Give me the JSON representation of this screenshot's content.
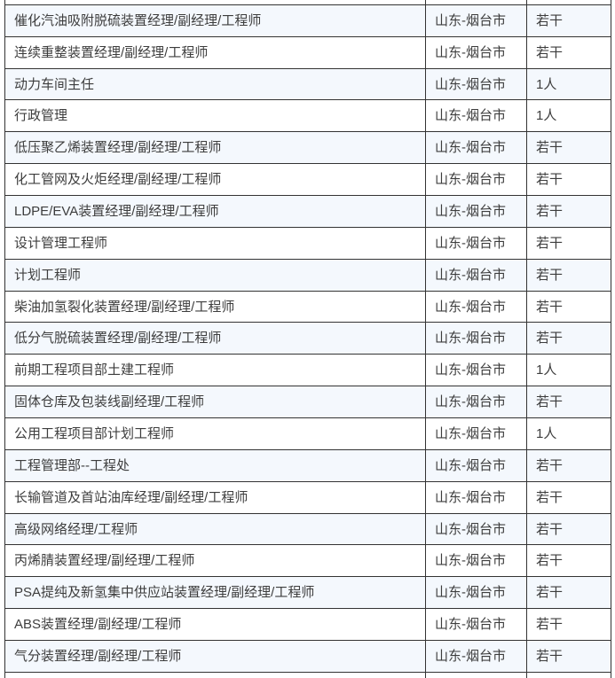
{
  "table": {
    "location_column_value": "山东-烟台市",
    "rows": [
      {
        "position": "催化汽油吸附脱硫装置经理/副经理/工程师",
        "location": "山东-烟台市",
        "headcount": "若干"
      },
      {
        "position": "连续重整装置经理/副经理/工程师",
        "location": "山东-烟台市",
        "headcount": "若干"
      },
      {
        "position": "动力车间主任",
        "location": "山东-烟台市",
        "headcount": "1人"
      },
      {
        "position": "行政管理",
        "location": "山东-烟台市",
        "headcount": "1人"
      },
      {
        "position": "低压聚乙烯装置经理/副经理/工程师",
        "location": "山东-烟台市",
        "headcount": "若干"
      },
      {
        "position": "化工管网及火炬经理/副经理/工程师",
        "location": "山东-烟台市",
        "headcount": "若干"
      },
      {
        "position": "LDPE/EVA装置经理/副经理/工程师",
        "location": "山东-烟台市",
        "headcount": "若干"
      },
      {
        "position": "设计管理工程师",
        "location": "山东-烟台市",
        "headcount": "若干"
      },
      {
        "position": "计划工程师",
        "location": "山东-烟台市",
        "headcount": "若干"
      },
      {
        "position": "柴油加氢裂化装置经理/副经理/工程师",
        "location": "山东-烟台市",
        "headcount": "若干"
      },
      {
        "position": "低分气脱硫装置经理/副经理/工程师",
        "location": "山东-烟台市",
        "headcount": "若干"
      },
      {
        "position": "前期工程项目部土建工程师",
        "location": "山东-烟台市",
        "headcount": "1人"
      },
      {
        "position": "固体仓库及包装线副经理/工程师",
        "location": "山东-烟台市",
        "headcount": "若干"
      },
      {
        "position": "公用工程项目部计划工程师",
        "location": "山东-烟台市",
        "headcount": "1人"
      },
      {
        "position": "工程管理部--工程处",
        "location": "山东-烟台市",
        "headcount": "若干"
      },
      {
        "position": "长输管道及首站油库经理/副经理/工程师",
        "location": "山东-烟台市",
        "headcount": "若干"
      },
      {
        "position": "高级网络经理/工程师",
        "location": "山东-烟台市",
        "headcount": "若干"
      },
      {
        "position": "丙烯腈装置经理/副经理/工程师",
        "location": "山东-烟台市",
        "headcount": "若干"
      },
      {
        "position": "PSA提纯及新氢集中供应站装置经理/副经理/工程师",
        "location": "山东-烟台市",
        "headcount": "若干"
      },
      {
        "position": "ABS装置经理/副经理/工程师",
        "location": "山东-烟台市",
        "headcount": "若干"
      },
      {
        "position": "气分装置经理/副经理/工程师",
        "location": "山东-烟台市",
        "headcount": "若干"
      }
    ]
  },
  "colors": {
    "row_bg": "#ffffff",
    "row_alt_bg": "#f4f8fd",
    "border": "#333333",
    "text": "#3d3d3d"
  }
}
